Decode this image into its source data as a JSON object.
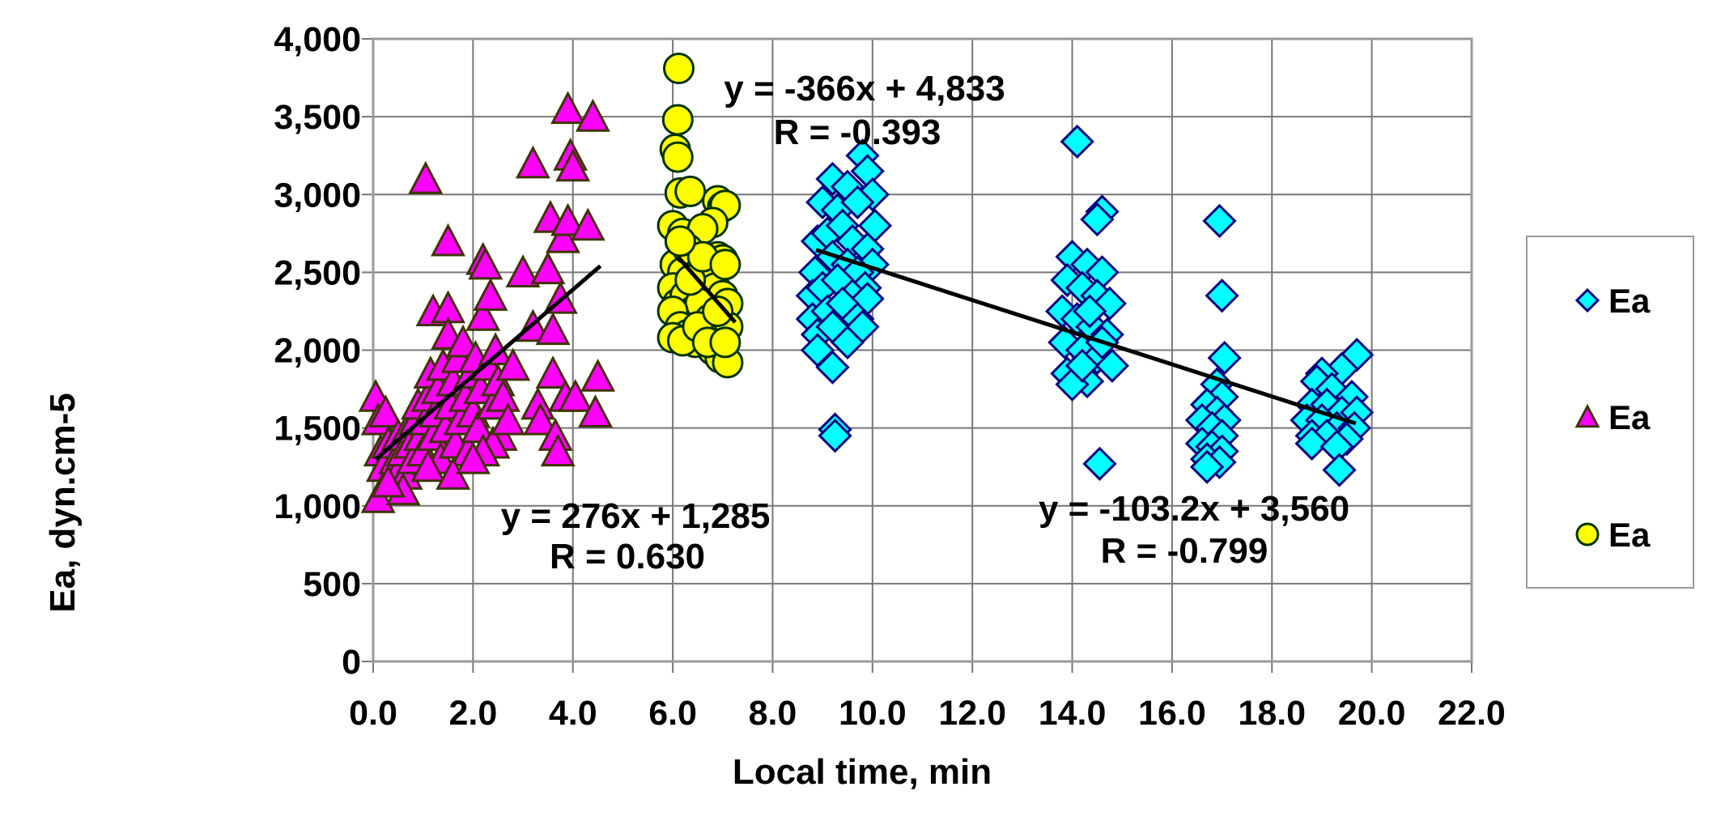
{
  "chart_data": {
    "type": "scatter",
    "title": "",
    "xlabel": "Local time, min",
    "ylabel": "Ea, dyn.cm-5",
    "xlim": [
      0,
      22
    ],
    "ylim": [
      0,
      4000
    ],
    "grid": true,
    "legend_position": "right",
    "x_ticks": [
      0,
      2,
      4,
      6,
      8,
      10,
      12,
      14,
      16,
      18,
      20,
      22
    ],
    "x_tick_labels": [
      "0.0",
      "2.0",
      "4.0",
      "6.0",
      "8.0",
      "10.0",
      "12.0",
      "14.0",
      "16.0",
      "18.0",
      "20.0",
      "22.0"
    ],
    "y_ticks": [
      0,
      500,
      1000,
      1500,
      2000,
      2500,
      3000,
      3500,
      4000
    ],
    "y_tick_labels": [
      "0",
      "500",
      "1,000",
      "1,500",
      "2,000",
      "2,500",
      "3,000",
      "3,500",
      "4,000"
    ],
    "legend": [
      {
        "label": "Ea",
        "marker": "diamond",
        "fill": "#00FFFF",
        "stroke": "#000080"
      },
      {
        "label": "Ea",
        "marker": "triangle",
        "fill": "#FF00FF",
        "stroke": "#3F3300"
      },
      {
        "label": "Ea",
        "marker": "circle",
        "fill": "#FFFF00",
        "stroke": "#003300"
      }
    ],
    "series": [
      {
        "name": "Ea",
        "marker": "triangle",
        "fill": "#FF00FF",
        "stroke": "#3F3300",
        "points": [
          [
            0.05,
            1700
          ],
          [
            0.1,
            1550
          ],
          [
            0.15,
            1350
          ],
          [
            0.1,
            1050
          ],
          [
            0.2,
            1250
          ],
          [
            0.25,
            1600
          ],
          [
            0.3,
            1400
          ],
          [
            0.35,
            1200
          ],
          [
            0.4,
            1150
          ],
          [
            0.45,
            1300
          ],
          [
            0.5,
            1450
          ],
          [
            0.55,
            1250
          ],
          [
            0.6,
            1350
          ],
          [
            0.65,
            1200
          ],
          [
            0.7,
            1500
          ],
          [
            0.75,
            1400
          ],
          [
            0.8,
            1300
          ],
          [
            0.85,
            1550
          ],
          [
            0.9,
            1650
          ],
          [
            0.95,
            1450
          ],
          [
            1.0,
            1350
          ],
          [
            1.05,
            3100
          ],
          [
            1.05,
            1550
          ],
          [
            1.1,
            1700
          ],
          [
            1.15,
            1850
          ],
          [
            1.2,
            2250
          ],
          [
            1.2,
            1450
          ],
          [
            1.25,
            1600
          ],
          [
            1.3,
            1750
          ],
          [
            1.35,
            1300
          ],
          [
            1.4,
            1900
          ],
          [
            1.45,
            1500
          ],
          [
            1.5,
            2700
          ],
          [
            1.5,
            2270
          ],
          [
            1.5,
            2100
          ],
          [
            1.55,
            1650
          ],
          [
            1.6,
            1800
          ],
          [
            1.65,
            1400
          ],
          [
            1.7,
            1950
          ],
          [
            1.75,
            1550
          ],
          [
            1.8,
            2050
          ],
          [
            1.85,
            1700
          ],
          [
            1.9,
            1350
          ],
          [
            1.95,
            1850
          ],
          [
            2.0,
            1600
          ],
          [
            2.05,
            1950
          ],
          [
            2.1,
            1500
          ],
          [
            2.15,
            1750
          ],
          [
            2.2,
            2580
          ],
          [
            2.2,
            2220
          ],
          [
            2.25,
            2550
          ],
          [
            2.3,
            1900
          ],
          [
            2.35,
            2350
          ],
          [
            2.4,
            1650
          ],
          [
            2.45,
            2000
          ],
          [
            2.5,
            1800
          ],
          [
            2.55,
            1450
          ],
          [
            2.6,
            1700
          ],
          [
            2.4,
            1400
          ],
          [
            2.2,
            1350
          ],
          [
            3.0,
            2500
          ],
          [
            3.2,
            3200
          ],
          [
            3.2,
            2150
          ],
          [
            3.3,
            1650
          ],
          [
            3.35,
            1550
          ],
          [
            3.5,
            2520
          ],
          [
            3.55,
            2850
          ],
          [
            3.6,
            2130
          ],
          [
            3.6,
            1850
          ],
          [
            3.65,
            1450
          ],
          [
            3.7,
            1350
          ],
          [
            3.75,
            2330
          ],
          [
            3.8,
            2720
          ],
          [
            3.85,
            1700
          ],
          [
            3.9,
            3550
          ],
          [
            3.9,
            2830
          ],
          [
            3.95,
            3250
          ],
          [
            4.0,
            3180
          ],
          [
            4.05,
            1700
          ],
          [
            4.3,
            2800
          ],
          [
            4.4,
            3500
          ],
          [
            4.45,
            1600
          ],
          [
            4.5,
            1830
          ],
          [
            2.7,
            1550
          ],
          [
            2.8,
            1900
          ],
          [
            1.1,
            1250
          ],
          [
            0.6,
            1100
          ],
          [
            1.6,
            1200
          ],
          [
            2.0,
            1300
          ],
          [
            0.3,
            1150
          ]
        ]
      },
      {
        "name": "Ea",
        "marker": "circle",
        "fill": "#FFFF00",
        "stroke": "#003300",
        "points": [
          [
            6.12,
            3810
          ],
          [
            6.1,
            3480
          ],
          [
            6.05,
            3290
          ],
          [
            6.1,
            3240
          ],
          [
            6.15,
            3010
          ],
          [
            6.35,
            3020
          ],
          [
            6.9,
            2960
          ],
          [
            7.0,
            2920
          ],
          [
            7.05,
            2930
          ],
          [
            6.8,
            2820
          ],
          [
            6.0,
            2800
          ],
          [
            6.2,
            2750
          ],
          [
            6.4,
            2700
          ],
          [
            6.6,
            2780
          ],
          [
            6.9,
            2600
          ],
          [
            7.0,
            2580
          ],
          [
            6.05,
            2550
          ],
          [
            6.2,
            2500
          ],
          [
            6.3,
            2650
          ],
          [
            6.5,
            2450
          ],
          [
            6.7,
            2500
          ],
          [
            6.85,
            2400
          ],
          [
            7.0,
            2350
          ],
          [
            7.1,
            2300
          ],
          [
            6.0,
            2400
          ],
          [
            6.1,
            2300
          ],
          [
            6.25,
            2350
          ],
          [
            6.4,
            2250
          ],
          [
            6.55,
            2300
          ],
          [
            6.75,
            2200
          ],
          [
            6.95,
            2150
          ],
          [
            7.1,
            2150
          ],
          [
            6.0,
            2250
          ],
          [
            6.15,
            2150
          ],
          [
            6.3,
            2100
          ],
          [
            6.45,
            2050
          ],
          [
            6.6,
            2100
          ],
          [
            6.8,
            2000
          ],
          [
            6.95,
            1950
          ],
          [
            7.1,
            1920
          ],
          [
            6.0,
            2080
          ],
          [
            6.2,
            2060
          ],
          [
            6.5,
            2150
          ],
          [
            6.7,
            2050
          ],
          [
            7.05,
            2050
          ],
          [
            6.35,
            2450
          ],
          [
            6.6,
            2600
          ],
          [
            6.15,
            2700
          ],
          [
            7.05,
            2550
          ],
          [
            6.9,
            2250
          ]
        ]
      },
      {
        "name": "Ea",
        "marker": "diamond",
        "fill": "#00FFFF",
        "stroke": "#000080",
        "points": [
          [
            9.8,
            3250
          ],
          [
            9.9,
            3150
          ],
          [
            9.2,
            3100
          ],
          [
            9.5,
            3050
          ],
          [
            10.0,
            3000
          ],
          [
            9.0,
            2950
          ],
          [
            9.3,
            2900
          ],
          [
            9.7,
            2950
          ],
          [
            10.05,
            2800
          ],
          [
            8.9,
            2700
          ],
          [
            9.1,
            2750
          ],
          [
            9.4,
            2800
          ],
          [
            9.6,
            2700
          ],
          [
            9.9,
            2650
          ],
          [
            10.0,
            2550
          ],
          [
            8.85,
            2500
          ],
          [
            9.2,
            2600
          ],
          [
            9.5,
            2550
          ],
          [
            9.7,
            2500
          ],
          [
            9.85,
            2400
          ],
          [
            8.8,
            2350
          ],
          [
            9.0,
            2400
          ],
          [
            9.3,
            2450
          ],
          [
            9.6,
            2350
          ],
          [
            9.9,
            2330
          ],
          [
            8.8,
            2200
          ],
          [
            9.1,
            2250
          ],
          [
            9.4,
            2300
          ],
          [
            9.7,
            2200
          ],
          [
            9.8,
            2150
          ],
          [
            8.9,
            2100
          ],
          [
            9.2,
            2150
          ],
          [
            9.5,
            2050
          ],
          [
            8.9,
            2000
          ],
          [
            9.2,
            1890
          ],
          [
            9.25,
            1490
          ],
          [
            9.25,
            1450
          ],
          [
            14.1,
            3340
          ],
          [
            14.6,
            2890
          ],
          [
            14.5,
            2840
          ],
          [
            14.0,
            2600
          ],
          [
            14.3,
            2550
          ],
          [
            14.6,
            2500
          ],
          [
            13.9,
            2450
          ],
          [
            14.2,
            2400
          ],
          [
            14.5,
            2350
          ],
          [
            14.75,
            2300
          ],
          [
            13.8,
            2250
          ],
          [
            14.1,
            2200
          ],
          [
            14.4,
            2150
          ],
          [
            14.7,
            2100
          ],
          [
            13.85,
            2050
          ],
          [
            14.2,
            2000
          ],
          [
            14.5,
            1950
          ],
          [
            14.8,
            1900
          ],
          [
            13.9,
            1850
          ],
          [
            14.3,
            1800
          ],
          [
            14.0,
            1780
          ],
          [
            14.6,
            2050
          ],
          [
            14.55,
            1270
          ],
          [
            14.2,
            1900
          ],
          [
            14.35,
            2250
          ],
          [
            16.95,
            2830
          ],
          [
            17.0,
            2350
          ],
          [
            17.05,
            1950
          ],
          [
            16.9,
            1780
          ],
          [
            17.0,
            1700
          ],
          [
            16.7,
            1650
          ],
          [
            16.9,
            1600
          ],
          [
            17.05,
            1550
          ],
          [
            16.6,
            1550
          ],
          [
            16.8,
            1500
          ],
          [
            17.0,
            1450
          ],
          [
            16.6,
            1400
          ],
          [
            16.8,
            1380
          ],
          [
            17.0,
            1350
          ],
          [
            16.7,
            1300
          ],
          [
            16.95,
            1280
          ],
          [
            16.7,
            1250
          ],
          [
            19.7,
            1970
          ],
          [
            19.4,
            1880
          ],
          [
            19.0,
            1850
          ],
          [
            18.9,
            1800
          ],
          [
            19.2,
            1750
          ],
          [
            19.6,
            1700
          ],
          [
            18.8,
            1650
          ],
          [
            19.1,
            1650
          ],
          [
            19.4,
            1600
          ],
          [
            19.7,
            1600
          ],
          [
            18.7,
            1550
          ],
          [
            19.0,
            1550
          ],
          [
            19.3,
            1500
          ],
          [
            19.65,
            1500
          ],
          [
            18.8,
            1450
          ],
          [
            19.1,
            1450
          ],
          [
            19.5,
            1430
          ],
          [
            18.8,
            1400
          ],
          [
            19.3,
            1380
          ],
          [
            19.35,
            1230
          ]
        ]
      }
    ],
    "trendlines": [
      {
        "series": "triangle",
        "equation": "y = 276x + 1,285",
        "r": "R = 0.630",
        "slope": 276,
        "intercept": 1285,
        "x_range": [
          0.05,
          4.55
        ]
      },
      {
        "series": "circle",
        "equation": "y = -366x + 4,833",
        "r": "R = -0.393",
        "slope": -366,
        "intercept": 4833,
        "x_range": [
          6.1,
          7.25
        ]
      },
      {
        "series": "diamond",
        "equation": "y = -103.2x + 3,560",
        "r": "R = -0.799",
        "slope": -103.2,
        "intercept": 3560,
        "x_range": [
          8.87,
          19.68
        ]
      }
    ]
  }
}
